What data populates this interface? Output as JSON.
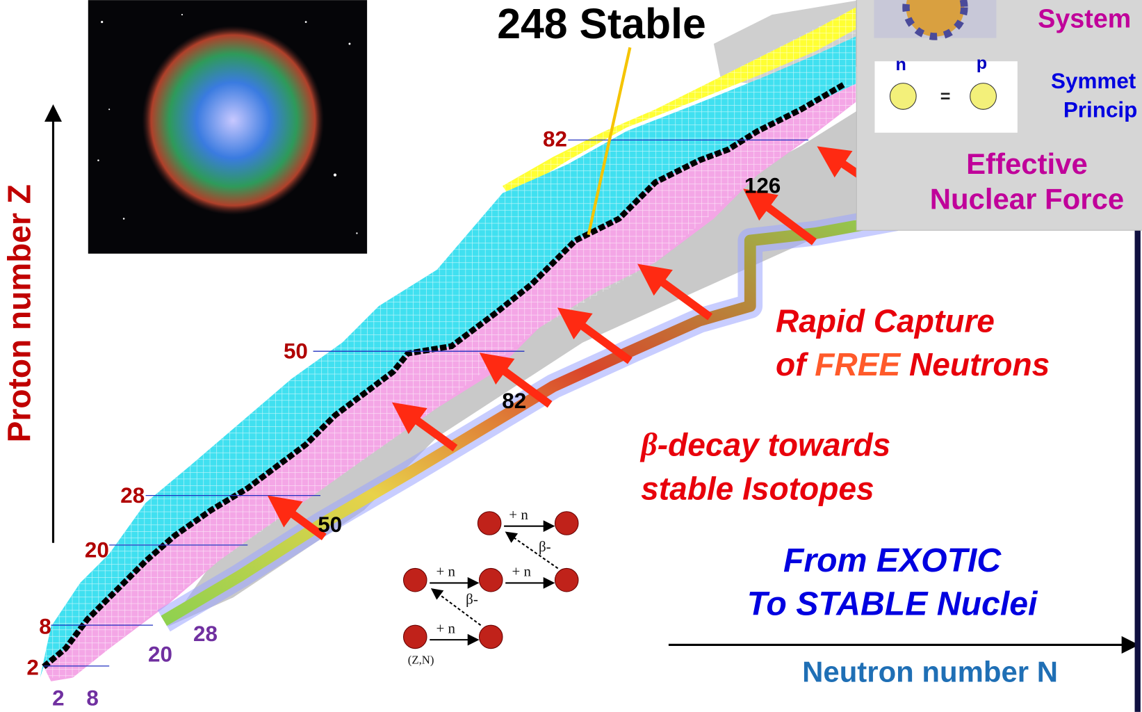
{
  "title": "248 Stable",
  "axes": {
    "y_label": "Proton number  Z",
    "x_label": "Neutron number N"
  },
  "proton_magic": [
    "82",
    "50",
    "28",
    "20",
    "8",
    "2"
  ],
  "neutron_magic": [
    "2",
    "8",
    "20",
    "28"
  ],
  "r_process_magic": [
    "50",
    "82",
    "126"
  ],
  "annotations": {
    "rapid_capture": {
      "line1": "Rapid Capture",
      "line2_prefix": "of ",
      "line2_highlight": "FREE",
      "line2_suffix": " Neutrons"
    },
    "beta_decay": {
      "line1_symbol": "β",
      "line1_rest": "-decay towards",
      "line2": "stable Isotopes"
    },
    "exotic": {
      "line1": "From EXOTIC",
      "line2": "To STABLE Nuclei"
    }
  },
  "panel": {
    "system": "System",
    "n": "n",
    "equals": "=",
    "p": "p",
    "symmetry_line1": "Symmet",
    "symmetry_line2": "Princip",
    "force_line1": "Effective",
    "force_line2": "Nuclear Force"
  },
  "inset": {
    "capture": [
      "+ n",
      "+ n",
      "+ n",
      "+ n"
    ],
    "beta": [
      "β-",
      "β-"
    ],
    "origin": "(Z,N)"
  }
}
